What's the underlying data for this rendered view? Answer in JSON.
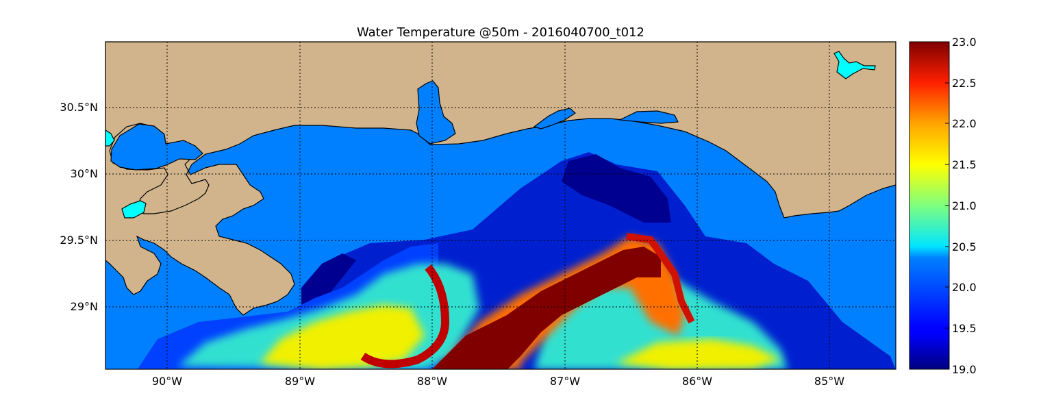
{
  "title": "Water Temperature @50m - 2016040700_t012",
  "map": {
    "extent": {
      "lon": [
        -90.45,
        -84.5
      ],
      "lat": [
        28.55,
        31.0
      ]
    },
    "lon_ticks": [
      {
        "value": -90,
        "label": "90°W"
      },
      {
        "value": -89,
        "label": "89°W"
      },
      {
        "value": -88,
        "label": "88°W"
      },
      {
        "value": -87,
        "label": "87°W"
      },
      {
        "value": -86,
        "label": "86°W"
      },
      {
        "value": -85,
        "label": "85°W"
      }
    ],
    "lat_ticks": [
      {
        "value": 30.5,
        "label": "30.5°N"
      },
      {
        "value": 30.0,
        "label": "30°N"
      },
      {
        "value": 29.5,
        "label": "29.5°N"
      },
      {
        "value": 29.0,
        "label": "29°N"
      }
    ],
    "grid": "dotted",
    "colors": {
      "land": "#d2b48c",
      "ocean_nodata": "#0080ff",
      "lakes": "#00ffff",
      "coastline": "#000000"
    }
  },
  "colorbar": {
    "colormap": "jet",
    "min": 19.0,
    "max": 23.0,
    "ticks": [
      "19.0",
      "19.5",
      "20.0",
      "20.5",
      "21.0",
      "21.5",
      "22.0",
      "22.5",
      "23.0"
    ]
  }
}
